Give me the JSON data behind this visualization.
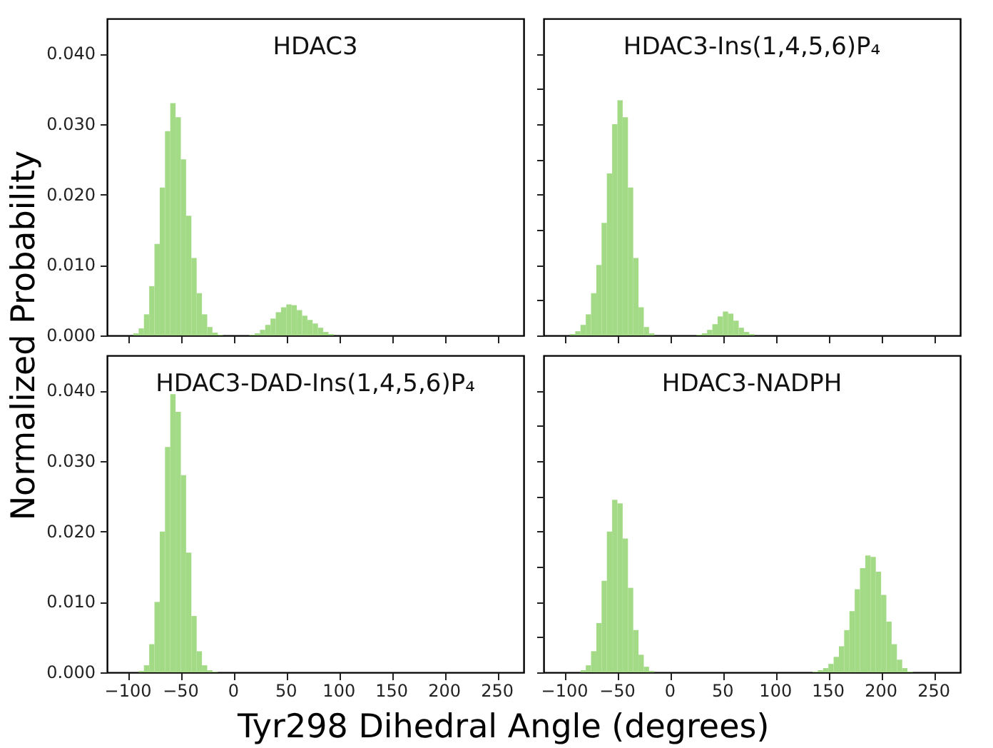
{
  "chart_data": [
    {
      "type": "histogram",
      "title": "HDAC3",
      "color": "#a3da86",
      "tick_labels": "y",
      "bins": [
        -100,
        -95,
        -90,
        -85,
        -80,
        -75,
        -70,
        -65,
        -60,
        -55,
        -50,
        -45,
        -40,
        -35,
        -30,
        -25,
        -20,
        -15,
        -10,
        -5,
        0,
        5,
        10,
        15,
        20,
        25,
        30,
        35,
        40,
        45,
        50,
        55,
        60,
        65,
        70,
        75,
        80,
        85,
        90,
        95,
        100
      ],
      "values": [
        0,
        0.0003,
        0.001,
        0.003,
        0.007,
        0.013,
        0.021,
        0.029,
        0.033,
        0.031,
        0.025,
        0.017,
        0.011,
        0.006,
        0.003,
        0.0012,
        0.0004,
        0.0001,
        0,
        0,
        0,
        0,
        0,
        0.0001,
        0.0003,
        0.0008,
        0.0015,
        0.0024,
        0.0033,
        0.004,
        0.0044,
        0.0043,
        0.0036,
        0.0028,
        0.0022,
        0.0017,
        0.0011,
        0.0005,
        0.0002,
        0
      ],
      "xlim": [
        -120,
        275
      ],
      "ylim": [
        0,
        0.045
      ],
      "xticks": [
        -100,
        -50,
        0,
        50,
        100,
        150,
        200,
        250
      ],
      "yticks": [
        {
          "value": 0,
          "label": "0.000"
        },
        {
          "value": 0.005,
          "label": null
        },
        {
          "value": 0.01,
          "label": "0.010"
        },
        {
          "value": 0.015,
          "label": null
        },
        {
          "value": 0.02,
          "label": "0.020"
        },
        {
          "value": 0.025,
          "label": null
        },
        {
          "value": 0.03,
          "label": "0.030"
        },
        {
          "value": 0.035,
          "label": null
        },
        {
          "value": 0.04,
          "label": "0.040"
        }
      ]
    },
    {
      "type": "histogram",
      "title": "HDAC3-Ins(1,4,5,6)P₄",
      "color": "#a3da86",
      "tick_labels": false,
      "bins": [
        -100,
        -95,
        -90,
        -85,
        -80,
        -75,
        -70,
        -65,
        -60,
        -55,
        -50,
        -45,
        -40,
        -35,
        -30,
        -25,
        -20,
        -15,
        -10,
        -5,
        0,
        5,
        10,
        15,
        20,
        25,
        30,
        35,
        40,
        45,
        50,
        55,
        60,
        65,
        70,
        75,
        80,
        85
      ],
      "values": [
        0,
        0.0002,
        0.0006,
        0.0015,
        0.003,
        0.006,
        0.01,
        0.016,
        0.023,
        0.03,
        0.0334,
        0.031,
        0.021,
        0.011,
        0.004,
        0.0012,
        0.0003,
        0,
        0,
        0,
        0,
        0,
        0,
        0,
        0,
        0.0001,
        0.0003,
        0.0008,
        0.0016,
        0.0027,
        0.0034,
        0.0031,
        0.0021,
        0.0011,
        0.0005,
        0.0002,
        0
      ],
      "xlim": [
        -120,
        275
      ],
      "ylim": [
        0,
        0.045
      ],
      "xticks": [
        -100,
        -50,
        0,
        50,
        100,
        150,
        200,
        250
      ],
      "yticks": [
        0,
        0.005,
        0.01,
        0.015,
        0.02,
        0.025,
        0.03,
        0.035,
        0.04
      ]
    },
    {
      "type": "histogram",
      "title": "HDAC3-DAD-Ins(1,4,5,6)P₄",
      "color": "#a3da86",
      "xlabel": "Tyr298 Dihedral Angle (degrees)",
      "ylabel": "Normalized Probability",
      "bins": [
        -90,
        -85,
        -80,
        -75,
        -70,
        -65,
        -60,
        -55,
        -50,
        -45,
        -40,
        -35,
        -30,
        -25,
        -20,
        -15
      ],
      "values": [
        0.0002,
        0.001,
        0.004,
        0.01,
        0.02,
        0.032,
        0.0395,
        0.037,
        0.028,
        0.017,
        0.008,
        0.003,
        0.001,
        0.0003,
        0.0001
      ],
      "xlim": [
        -120,
        275
      ],
      "ylim": [
        0,
        0.045
      ],
      "xticks": [
        -100,
        -50,
        0,
        50,
        100,
        150,
        200,
        250
      ],
      "yticks": [
        {
          "value": 0,
          "label": "0.000"
        },
        {
          "value": 0.005,
          "label": null
        },
        {
          "value": 0.01,
          "label": "0.010"
        },
        {
          "value": 0.015,
          "label": null
        },
        {
          "value": 0.02,
          "label": "0.020"
        },
        {
          "value": 0.025,
          "label": null
        },
        {
          "value": 0.03,
          "label": "0.030"
        },
        {
          "value": 0.035,
          "label": null
        },
        {
          "value": 0.04,
          "label": "0.040"
        }
      ]
    },
    {
      "type": "histogram",
      "title": "HDAC3-NADPH",
      "color": "#a3da86",
      "tick_labels": "x",
      "bins": [
        -85,
        -80,
        -75,
        -70,
        -65,
        -60,
        -55,
        -50,
        -45,
        -40,
        -35,
        -30,
        -25,
        -20,
        -15,
        -10,
        -5,
        0,
        5,
        10,
        15,
        20,
        25,
        30,
        35,
        40,
        45,
        50,
        55,
        60,
        65,
        70,
        75,
        80,
        85,
        90,
        95,
        100,
        105,
        110,
        115,
        120,
        125,
        130,
        135,
        140,
        145,
        150,
        155,
        160,
        165,
        170,
        175,
        180,
        185,
        190,
        195,
        200,
        205,
        210,
        215,
        220,
        225,
        230
      ],
      "values": [
        0.0003,
        0.001,
        0.003,
        0.007,
        0.013,
        0.02,
        0.0245,
        0.024,
        0.019,
        0.012,
        0.006,
        0.0025,
        0.0008,
        0.0002,
        0,
        0,
        0,
        0,
        0,
        0,
        0,
        0,
        0,
        0,
        0,
        0,
        0,
        0,
        0,
        0,
        0,
        0,
        0,
        0,
        0,
        0,
        0,
        0,
        0,
        0,
        0,
        0,
        0,
        0,
        0.0001,
        0.0003,
        0.0006,
        0.0012,
        0.0022,
        0.0037,
        0.006,
        0.0087,
        0.0118,
        0.0148,
        0.0166,
        0.0164,
        0.0143,
        0.011,
        0.0072,
        0.004,
        0.0018,
        0.0006,
        0.0001
      ],
      "xlim": [
        -120,
        275
      ],
      "ylim": [
        0,
        0.045
      ],
      "xticks": [
        -100,
        -50,
        0,
        50,
        100,
        150,
        200,
        250
      ],
      "yticks": [
        0,
        0.005,
        0.01,
        0.015,
        0.02,
        0.025,
        0.03,
        0.035,
        0.04
      ]
    }
  ]
}
